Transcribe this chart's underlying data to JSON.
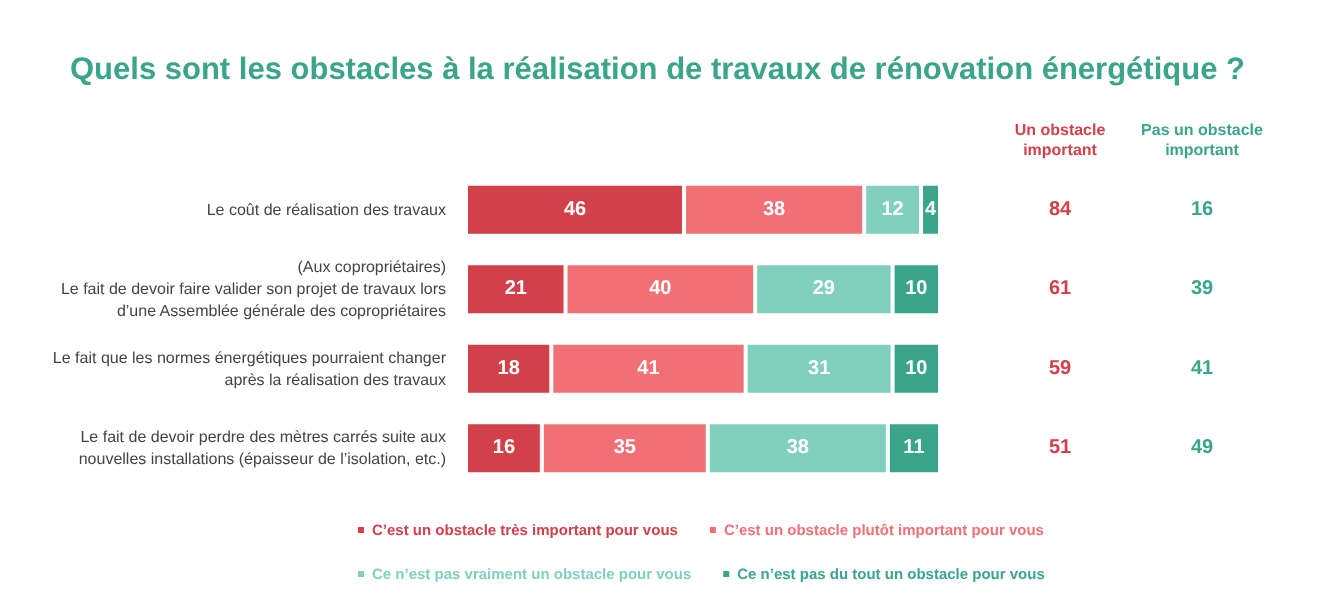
{
  "chart_data": {
    "type": "bar",
    "orientation": "horizontal",
    "stacked": true,
    "title": "Quels sont les obstacles à la réalisation de travaux de rénovation énergétique ?",
    "categories": [
      "Le coût de réalisation des travaux",
      "(Aux copropriétaires)\nLe fait de devoir faire valider son projet de travaux lors\nd’une Assemblée générale des copropriétaires",
      "Le fait que les normes énergétiques pourraient changer\naprès la réalisation des travaux",
      "Le fait de devoir perdre des mètres carrés suite aux\nnouvelles installations (épaisseur de l’isolation, etc.)"
    ],
    "series": [
      {
        "name": "C’est un obstacle très important pour vous",
        "color": "#d2404a",
        "values": [
          46,
          21,
          18,
          16
        ]
      },
      {
        "name": "C’est un obstacle plutôt important pour vous",
        "color": "#f07075",
        "values": [
          38,
          40,
          41,
          35
        ]
      },
      {
        "name": "Ce n’est pas vraiment un obstacle pour vous",
        "color": "#80d0bd",
        "values": [
          12,
          29,
          31,
          38
        ]
      },
      {
        "name": "Ce n’est pas du tout un obstacle pour vous",
        "color": "#3aa58a",
        "values": [
          4,
          10,
          10,
          11
        ]
      }
    ],
    "xlim": [
      0,
      100
    ],
    "data_labels": true,
    "legend": "bottom",
    "tick_labels": "y",
    "annotations": [
      "Un obstacle\nimportant",
      "Pas un obstacle\nimportant",
      "84",
      "16",
      "61",
      "39",
      "59",
      "41",
      "51",
      "49"
    ]
  }
}
